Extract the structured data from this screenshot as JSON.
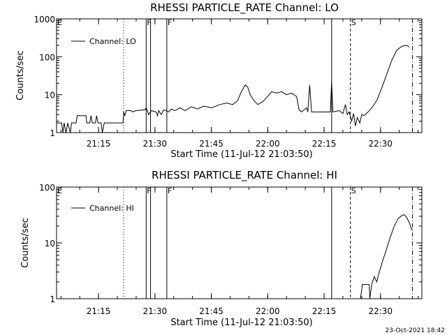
{
  "stamp": "23-Oct-2021 18:42",
  "chart_data": [
    {
      "type": "line",
      "title": "RHESSI PARTICLE_RATE Channel: LO",
      "xlabel": "Start Time (11-Jul-12 21:03:50)",
      "ylabel": "Counts/sec",
      "yscale": "log",
      "xlim": [
        "21:03:50",
        "22:41:00"
      ],
      "ylim": [
        1,
        1000
      ],
      "x_ticks": [
        "21:15",
        "21:30",
        "21:45",
        "22:00",
        "22:15",
        "22:30"
      ],
      "y_ticks": [
        1,
        10,
        100,
        1000
      ],
      "y_tick_labels": [
        "1",
        "10",
        "100",
        "1000"
      ],
      "legend": {
        "position": "top-left",
        "entries": [
          "Channel: LO"
        ]
      },
      "flags": [
        {
          "label": "E",
          "time": "21:03:50",
          "style": "none"
        },
        {
          "label": "",
          "time": "21:21:40",
          "style": "dotted"
        },
        {
          "label": "F",
          "time": "21:27:40",
          "style": "solid"
        },
        {
          "label": "",
          "time": "21:28:50",
          "style": "solid"
        },
        {
          "label": "F",
          "time": "21:33:10",
          "style": "solid"
        },
        {
          "label": "",
          "time": "22:17:00",
          "style": "solid"
        },
        {
          "label": "S",
          "time": "22:22:00",
          "style": "dashed"
        },
        {
          "label": "",
          "time": "22:38:30",
          "style": "dashdot"
        }
      ],
      "series": [
        {
          "name": "Channel: LO",
          "points": [
            [
              "21:03:50",
              1.8
            ],
            [
              "21:05:10",
              1.8
            ],
            [
              "21:05:30",
              1.0
            ],
            [
              "21:05:50",
              1.8
            ],
            [
              "21:06:20",
              1.0
            ],
            [
              "21:06:50",
              1.8
            ],
            [
              "21:07:30",
              1.0
            ],
            [
              "21:07:50",
              1.8
            ],
            [
              "21:09:00",
              1.8
            ],
            [
              "21:09:20",
              2.8
            ],
            [
              "21:11:40",
              2.8
            ],
            [
              "21:11:50",
              1.8
            ],
            [
              "21:12:40",
              1.8
            ],
            [
              "21:13:00",
              2.8
            ],
            [
              "21:13:20",
              1.8
            ],
            [
              "21:14:10",
              1.8
            ],
            [
              "21:14:30",
              2.8
            ],
            [
              "21:14:50",
              1.8
            ],
            [
              "21:15:40",
              1.8
            ],
            [
              "21:16:00",
              1.0
            ],
            [
              "21:16:30",
              1.8
            ],
            [
              "21:21:30",
              1.8
            ],
            [
              "21:21:40",
              3.5
            ],
            [
              "21:22:00",
              2.8
            ],
            [
              "21:22:20",
              3.8
            ],
            [
              "21:23:40",
              3.8
            ],
            [
              "21:24:00",
              3.5
            ],
            [
              "21:25:00",
              3.8
            ],
            [
              "21:27:20",
              4.0
            ],
            [
              "21:27:40",
              4.5
            ],
            [
              "21:28:20",
              3.0
            ],
            [
              "21:29:00",
              3.8
            ],
            [
              "21:30:20",
              3.5
            ],
            [
              "21:30:40",
              2.8
            ],
            [
              "21:31:00",
              3.8
            ],
            [
              "21:31:40",
              3.0
            ],
            [
              "21:32:20",
              4.0
            ],
            [
              "21:33:40",
              3.5
            ],
            [
              "21:34:20",
              4.2
            ],
            [
              "21:35:20",
              3.8
            ],
            [
              "21:36:40",
              4.5
            ],
            [
              "21:38:00",
              3.8
            ],
            [
              "21:39:40",
              4.8
            ],
            [
              "21:41:20",
              4.2
            ],
            [
              "21:43:00",
              5.0
            ],
            [
              "21:45:00",
              4.5
            ],
            [
              "21:47:20",
              5.5
            ],
            [
              "21:49:00",
              6.0
            ],
            [
              "21:50:40",
              5.5
            ],
            [
              "21:52:00",
              7.0
            ],
            [
              "21:53:00",
              12.0
            ],
            [
              "21:54:00",
              18.0
            ],
            [
              "21:54:40",
              16.0
            ],
            [
              "21:55:20",
              10.0
            ],
            [
              "21:56:20",
              7.0
            ],
            [
              "21:57:20",
              5.5
            ],
            [
              "21:58:40",
              6.5
            ],
            [
              "22:00:00",
              9.0
            ],
            [
              "22:01:00",
              12.0
            ],
            [
              "22:02:20",
              11.0
            ],
            [
              "22:03:40",
              12.0
            ],
            [
              "22:05:00",
              10.0
            ],
            [
              "22:06:20",
              11.0
            ],
            [
              "22:07:40",
              9.0
            ],
            [
              "22:08:20",
              4.0
            ],
            [
              "22:09:00",
              3.5
            ],
            [
              "22:10:20",
              4.5
            ],
            [
              "22:10:40",
              3.5
            ],
            [
              "22:11:10",
              18.0
            ],
            [
              "22:11:40",
              3.5
            ],
            [
              "22:16:40",
              3.5
            ],
            [
              "22:17:00",
              22.0
            ],
            [
              "22:17:20",
              3.5
            ],
            [
              "22:19:00",
              3.8
            ],
            [
              "22:20:00",
              3.2
            ],
            [
              "22:20:40",
              5.5
            ],
            [
              "22:21:10",
              3.0
            ],
            [
              "22:21:40",
              3.5
            ],
            [
              "22:22:20",
              2.0
            ],
            [
              "22:22:50",
              3.2
            ],
            [
              "22:23:20",
              1.5
            ],
            [
              "22:23:50",
              2.5
            ],
            [
              "22:24:30",
              1.8
            ],
            [
              "22:25:00",
              3.0
            ],
            [
              "22:25:40",
              2.8
            ],
            [
              "22:26:40",
              3.5
            ],
            [
              "22:27:40",
              4.5
            ],
            [
              "22:29:00",
              7.0
            ],
            [
              "22:30:20",
              15.0
            ],
            [
              "22:31:40",
              35.0
            ],
            [
              "22:33:00",
              80.0
            ],
            [
              "22:34:20",
              150.0
            ],
            [
              "22:35:40",
              190.0
            ],
            [
              "22:37:00",
              200.0
            ],
            [
              "22:37:40",
              180.0
            ]
          ]
        }
      ]
    },
    {
      "type": "line",
      "title": "RHESSI PARTICLE_RATE Channel: HI",
      "xlabel": "Start Time (11-Jul-12 21:03:50)",
      "ylabel": "Counts/sec",
      "yscale": "log",
      "xlim": [
        "21:03:50",
        "22:41:00"
      ],
      "ylim": [
        1,
        100
      ],
      "x_ticks": [
        "21:15",
        "21:30",
        "21:45",
        "22:00",
        "22:15",
        "22:30"
      ],
      "y_ticks": [
        1,
        10,
        100
      ],
      "y_tick_labels": [
        "1",
        "10",
        "100"
      ],
      "legend": {
        "position": "top-left",
        "entries": [
          "Channel: HI"
        ]
      },
      "flags": [
        {
          "label": "E",
          "time": "21:03:50",
          "style": "none"
        },
        {
          "label": "",
          "time": "21:21:40",
          "style": "dotted"
        },
        {
          "label": "F",
          "time": "21:27:40",
          "style": "solid"
        },
        {
          "label": "",
          "time": "21:28:50",
          "style": "solid"
        },
        {
          "label": "F",
          "time": "21:33:10",
          "style": "solid"
        },
        {
          "label": "",
          "time": "22:17:00",
          "style": "solid"
        },
        {
          "label": "S",
          "time": "22:22:00",
          "style": "dashed"
        },
        {
          "label": "",
          "time": "22:38:30",
          "style": "dashdot"
        }
      ],
      "series": [
        {
          "name": "Channel: HI",
          "points": [
            [
              "22:24:40",
              1.0
            ],
            [
              "22:25:10",
              1.8
            ],
            [
              "22:27:00",
              1.8
            ],
            [
              "22:27:10",
              1.0
            ],
            [
              "22:27:40",
              1.8
            ],
            [
              "22:28:20",
              2.5
            ],
            [
              "22:29:00",
              2.0
            ],
            [
              "22:29:40",
              3.0
            ],
            [
              "22:30:40",
              5.0
            ],
            [
              "22:31:40",
              8.0
            ],
            [
              "22:32:40",
              13.0
            ],
            [
              "22:33:40",
              20.0
            ],
            [
              "22:34:40",
              27.0
            ],
            [
              "22:35:40",
              31.0
            ],
            [
              "22:36:20",
              32.0
            ],
            [
              "22:37:00",
              28.0
            ],
            [
              "22:37:40",
              23.0
            ],
            [
              "22:38:20",
              17.0
            ]
          ]
        }
      ]
    }
  ]
}
